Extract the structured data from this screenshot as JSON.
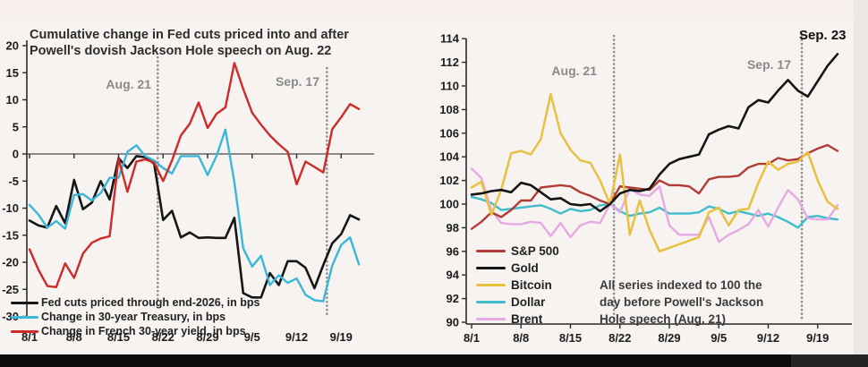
{
  "chart_data": [
    {
      "id": "fed-cuts-chart",
      "type": "line",
      "title_lines": [
        "Cumulative change in Fed cuts priced into and after",
        "Powell's dovish Jackson Hole speech on Aug. 22"
      ],
      "x": [
        "8/1",
        "8/4",
        "8/5",
        "8/6",
        "8/7",
        "8/8",
        "8/11",
        "8/12",
        "8/13",
        "8/14",
        "8/15",
        "8/18",
        "8/19",
        "8/20",
        "8/21",
        "8/22",
        "8/25",
        "8/26",
        "8/27",
        "8/28",
        "8/29",
        "9/1",
        "9/2",
        "9/3",
        "9/4",
        "9/5",
        "9/8",
        "9/9",
        "9/10",
        "9/11",
        "9/12",
        "9/15",
        "9/16",
        "9/17",
        "9/18",
        "9/19",
        "9/22",
        "9/23"
      ],
      "x_tick_labels": [
        "8/1",
        "8/8",
        "8/15",
        "8/22",
        "8/29",
        "9/5",
        "9/12",
        "9/19"
      ],
      "x_tick_indices": [
        0,
        5,
        10,
        15,
        20,
        25,
        30,
        35
      ],
      "y_ticks": [
        20,
        15,
        10,
        5,
        0,
        -5,
        -10,
        -15,
        -20,
        -25,
        -30
      ],
      "ylim": [
        -30,
        21
      ],
      "zero_line": true,
      "grid": false,
      "legend_position": "bottom-left",
      "vlines": [
        {
          "label": "Aug. 21",
          "date": "8/21"
        },
        {
          "label": "Sep. 17",
          "date": "9/17"
        }
      ],
      "series": [
        {
          "name": "Fed cuts priced through end-2026, in bps",
          "color": "#161616",
          "values": [
            -12.3,
            -13.2,
            -13.6,
            -9.6,
            -12.8,
            -4.8,
            -10.2,
            -9.0,
            -5.0,
            -8.4,
            -0.8,
            -2.6,
            -0.4,
            -0.6,
            -1.8,
            -12.2,
            -10.5,
            -15.4,
            -14.5,
            -15.5,
            -15.4,
            -15.5,
            -15.5,
            -11.8,
            -25.7,
            -26.5,
            -26.5,
            -22.0,
            -24.2,
            -19.8,
            -19.8,
            -21.0,
            -24.8,
            -20.5,
            -16.5,
            -14.8,
            -11.3,
            -12.1
          ]
        },
        {
          "name": "Change in 30-year Treasury, in bps",
          "color": "#3ab7d9",
          "values": [
            -9.4,
            -11.2,
            -13.6,
            -12.4,
            -13.8,
            -7.6,
            -7.4,
            -8.6,
            -7.2,
            -4.4,
            -4.4,
            0.4,
            1.6,
            -0.4,
            -1.2,
            -2.6,
            -3.6,
            -0.4,
            -0.4,
            -0.4,
            -3.9,
            -0.4,
            4.5,
            -5.2,
            -17.4,
            -20.8,
            -18.8,
            -24.2,
            -22.4,
            -23.8,
            -23.0,
            -26.0,
            -27.0,
            -27.2,
            -20.6,
            -16.8,
            -15.4,
            -20.4
          ]
        },
        {
          "name": "Change in French 30-year yield, in bps",
          "color": "#cf2a28",
          "values": [
            -17.6,
            -21.4,
            -24.4,
            -24.6,
            -20.2,
            -22.9,
            -18.4,
            -16.4,
            -15.6,
            -15.2,
            -0.9,
            -7.0,
            -1.4,
            -1.0,
            -1.6,
            -5.0,
            -1.2,
            3.4,
            5.6,
            9.5,
            4.8,
            7.4,
            8.6,
            16.8,
            12.0,
            7.6,
            5.4,
            3.4,
            1.8,
            0.4,
            -5.6,
            -1.4,
            -2.4,
            -3.4,
            4.6,
            6.8,
            9.2,
            8.3
          ]
        }
      ]
    },
    {
      "id": "indexed-assets-chart",
      "type": "line",
      "x": [
        "8/1",
        "8/4",
        "8/5",
        "8/6",
        "8/7",
        "8/8",
        "8/11",
        "8/12",
        "8/13",
        "8/14",
        "8/15",
        "8/18",
        "8/19",
        "8/20",
        "8/21",
        "8/22",
        "8/25",
        "8/26",
        "8/27",
        "8/28",
        "8/29",
        "9/1",
        "9/2",
        "9/3",
        "9/4",
        "9/5",
        "9/8",
        "9/9",
        "9/10",
        "9/11",
        "9/12",
        "9/15",
        "9/16",
        "9/17",
        "9/18",
        "9/19",
        "9/22",
        "9/23"
      ],
      "x_tick_labels": [
        "8/1",
        "8/8",
        "8/15",
        "8/22",
        "8/29",
        "9/5",
        "9/12",
        "9/19"
      ],
      "x_tick_indices": [
        0,
        5,
        10,
        15,
        20,
        25,
        30,
        35
      ],
      "y_ticks": [
        114,
        112,
        110,
        108,
        106,
        104,
        102,
        100,
        98,
        96,
        94,
        92,
        90
      ],
      "ylim": [
        90,
        114
      ],
      "zero_line": false,
      "grid": false,
      "legend_position": "bottom-left",
      "end_label": "Sep. 23",
      "note_lines": [
        "All series indexed to 100 the",
        "day before Powell's Jackson",
        "Hole speech (Aug. 21)"
      ],
      "vlines": [
        {
          "label": "Aug. 21",
          "date": "8/21"
        },
        {
          "label": "Sep. 17",
          "date": "9/17"
        }
      ],
      "series": [
        {
          "name": "S&P 500",
          "color": "#b23c35",
          "values": [
            97.9,
            98.5,
            99.3,
            98.9,
            99.5,
            100.3,
            100.3,
            101.4,
            101.5,
            101.6,
            101.5,
            101.0,
            100.7,
            100.3,
            100.0,
            101.5,
            101.4,
            101.3,
            101.2,
            102.0,
            101.6,
            101.6,
            101.5,
            100.9,
            102.1,
            102.3,
            102.3,
            102.4,
            103.1,
            103.4,
            103.4,
            103.9,
            103.7,
            103.8,
            104.3,
            104.7,
            105.0,
            104.5
          ]
        },
        {
          "name": "Gold",
          "color": "#141414",
          "values": [
            100.8,
            100.9,
            101.1,
            101.2,
            101.0,
            101.8,
            101.6,
            101.0,
            100.4,
            100.5,
            100.0,
            99.9,
            100.0,
            99.4,
            100.0,
            100.9,
            101.2,
            101.1,
            101.3,
            102.5,
            103.4,
            103.8,
            104.0,
            104.2,
            105.9,
            106.3,
            106.6,
            106.4,
            108.2,
            108.8,
            108.6,
            109.6,
            110.5,
            109.6,
            109.1,
            110.4,
            111.7,
            112.7
          ]
        },
        {
          "name": "Bitcoin",
          "color": "#e7c13f",
          "values": [
            101.4,
            101.9,
            99.1,
            101.2,
            104.3,
            104.5,
            104.2,
            105.5,
            109.3,
            106.0,
            104.6,
            103.7,
            103.5,
            102.0,
            100.0,
            104.2,
            97.4,
            100.3,
            97.8,
            96.0,
            96.3,
            96.6,
            96.9,
            97.2,
            99.3,
            99.7,
            98.2,
            99.5,
            99.6,
            101.8,
            103.6,
            102.9,
            103.4,
            103.6,
            104.4,
            102.0,
            100.2,
            99.6
          ]
        },
        {
          "name": "Dollar",
          "color": "#41bccb",
          "values": [
            100.6,
            100.4,
            100.1,
            99.5,
            99.6,
            99.7,
            99.8,
            99.9,
            99.6,
            99.2,
            99.6,
            99.4,
            99.5,
            99.9,
            100.0,
            99.4,
            99.0,
            99.2,
            99.3,
            99.7,
            99.2,
            99.2,
            99.2,
            99.3,
            99.8,
            99.6,
            99.2,
            99.4,
            99.2,
            99.0,
            99.2,
            98.9,
            98.5,
            98.0,
            98.9,
            99.0,
            98.8,
            98.7
          ]
        },
        {
          "name": "Brent",
          "color": "#e7a9e3",
          "values": [
            103.0,
            102.2,
            99.5,
            98.4,
            98.3,
            98.3,
            98.5,
            98.4,
            97.3,
            98.4,
            97.2,
            98.2,
            98.5,
            98.4,
            100.0,
            99.3,
            101.3,
            100.8,
            100.7,
            101.5,
            98.2,
            97.4,
            97.4,
            97.4,
            98.9,
            96.8,
            97.4,
            97.8,
            98.3,
            99.5,
            98.1,
            99.7,
            101.2,
            100.4,
            98.8,
            98.7,
            98.7,
            99.9
          ]
        }
      ]
    }
  ],
  "colors": {
    "dotted_line": "#8f8f8f",
    "annotation_gray": "#8a8a8a",
    "background": "#f6f3f0",
    "bottom_bar": "#0c0c0c"
  }
}
